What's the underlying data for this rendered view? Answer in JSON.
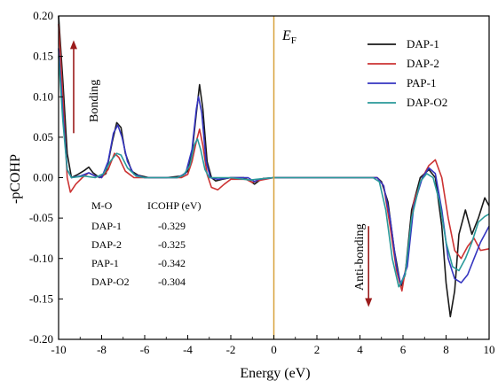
{
  "chart_data": {
    "type": "line",
    "xlabel": "Energy (eV)",
    "ylabel": "-pCOHP",
    "xlim": [
      -10,
      10
    ],
    "ylim": [
      -0.2,
      0.2
    ],
    "x_ticks": [
      -10,
      -8,
      -6,
      -4,
      -2,
      0,
      2,
      4,
      6,
      8,
      10
    ],
    "y_ticks": [
      -0.2,
      -0.15,
      -0.1,
      -0.05,
      0.0,
      0.05,
      0.1,
      0.15,
      0.2
    ],
    "fermi_level": {
      "x": 0,
      "label": "E",
      "subscript": "F",
      "color": "#d8a13a"
    },
    "legend": {
      "position": "top-right"
    },
    "series": [
      {
        "name": "DAP-1",
        "color": "#1a1a1a",
        "points": [
          [
            -10,
            0.2
          ],
          [
            -9.8,
            0.12
          ],
          [
            -9.6,
            0.03
          ],
          [
            -9.4,
            0.0
          ],
          [
            -9.1,
            0.004
          ],
          [
            -8.8,
            0.009
          ],
          [
            -8.6,
            0.013
          ],
          [
            -8.4,
            0.006
          ],
          [
            -8.1,
            0.0
          ],
          [
            -7.8,
            0.005
          ],
          [
            -7.5,
            0.045
          ],
          [
            -7.3,
            0.068
          ],
          [
            -7.1,
            0.062
          ],
          [
            -6.9,
            0.03
          ],
          [
            -6.6,
            0.008
          ],
          [
            -6.3,
            0.003
          ],
          [
            -5.8,
            0.0
          ],
          [
            -5.0,
            0.0
          ],
          [
            -4.3,
            0.002
          ],
          [
            -4.0,
            0.008
          ],
          [
            -3.8,
            0.03
          ],
          [
            -3.6,
            0.08
          ],
          [
            -3.45,
            0.115
          ],
          [
            -3.3,
            0.085
          ],
          [
            -3.1,
            0.02
          ],
          [
            -2.9,
            0.0
          ],
          [
            -2.7,
            -0.004
          ],
          [
            -2.4,
            -0.002
          ],
          [
            -2.0,
            0.0
          ],
          [
            -1.4,
            0.0
          ],
          [
            -1.1,
            -0.004
          ],
          [
            -0.9,
            -0.008
          ],
          [
            -0.7,
            -0.004
          ],
          [
            -0.5,
            -0.001
          ],
          [
            0,
            0.0
          ],
          [
            3.0,
            0.0
          ],
          [
            4.8,
            0.0
          ],
          [
            5.0,
            -0.005
          ],
          [
            5.3,
            -0.03
          ],
          [
            5.6,
            -0.09
          ],
          [
            5.9,
            -0.135
          ],
          [
            6.1,
            -0.12
          ],
          [
            6.4,
            -0.04
          ],
          [
            6.8,
            0.0
          ],
          [
            7.2,
            0.01
          ],
          [
            7.5,
            0.0
          ],
          [
            7.8,
            -0.06
          ],
          [
            8.0,
            -0.13
          ],
          [
            8.2,
            -0.172
          ],
          [
            8.4,
            -0.14
          ],
          [
            8.6,
            -0.07
          ],
          [
            8.9,
            -0.04
          ],
          [
            9.2,
            -0.07
          ],
          [
            9.5,
            -0.05
          ],
          [
            9.8,
            -0.025
          ],
          [
            10,
            -0.035
          ]
        ]
      },
      {
        "name": "DAP-2",
        "color": "#cc3333",
        "points": [
          [
            -10,
            0.19
          ],
          [
            -9.8,
            0.1
          ],
          [
            -9.6,
            0.0
          ],
          [
            -9.45,
            -0.018
          ],
          [
            -9.2,
            -0.008
          ],
          [
            -8.9,
            0.0
          ],
          [
            -8.6,
            0.006
          ],
          [
            -8.3,
            0.002
          ],
          [
            -8.0,
            0.0
          ],
          [
            -7.7,
            0.01
          ],
          [
            -7.4,
            0.03
          ],
          [
            -7.2,
            0.025
          ],
          [
            -6.9,
            0.008
          ],
          [
            -6.5,
            0.0
          ],
          [
            -5.5,
            0.0
          ],
          [
            -4.3,
            0.0
          ],
          [
            -4.0,
            0.004
          ],
          [
            -3.8,
            0.02
          ],
          [
            -3.6,
            0.045
          ],
          [
            -3.45,
            0.06
          ],
          [
            -3.3,
            0.04
          ],
          [
            -3.1,
            0.004
          ],
          [
            -2.9,
            -0.012
          ],
          [
            -2.6,
            -0.015
          ],
          [
            -2.3,
            -0.008
          ],
          [
            -2.0,
            -0.002
          ],
          [
            -1.3,
            -0.002
          ],
          [
            -1.0,
            -0.006
          ],
          [
            -0.8,
            -0.004
          ],
          [
            0,
            0.0
          ],
          [
            3.0,
            0.0
          ],
          [
            4.8,
            0.0
          ],
          [
            5.1,
            -0.01
          ],
          [
            5.4,
            -0.06
          ],
          [
            5.7,
            -0.115
          ],
          [
            5.95,
            -0.14
          ],
          [
            6.2,
            -0.1
          ],
          [
            6.5,
            -0.03
          ],
          [
            6.9,
            0.0
          ],
          [
            7.2,
            0.015
          ],
          [
            7.5,
            0.022
          ],
          [
            7.8,
            0.0
          ],
          [
            8.1,
            -0.05
          ],
          [
            8.4,
            -0.09
          ],
          [
            8.7,
            -0.1
          ],
          [
            9.0,
            -0.085
          ],
          [
            9.3,
            -0.075
          ],
          [
            9.6,
            -0.09
          ],
          [
            10,
            -0.088
          ]
        ]
      },
      {
        "name": "PAP-1",
        "color": "#3535c0",
        "points": [
          [
            -10,
            0.16
          ],
          [
            -9.8,
            0.08
          ],
          [
            -9.6,
            0.01
          ],
          [
            -9.4,
            0.0
          ],
          [
            -9.0,
            0.002
          ],
          [
            -8.6,
            0.006
          ],
          [
            -8.3,
            0.002
          ],
          [
            -8.0,
            0.0
          ],
          [
            -7.7,
            0.02
          ],
          [
            -7.45,
            0.055
          ],
          [
            -7.25,
            0.065
          ],
          [
            -7.05,
            0.05
          ],
          [
            -6.8,
            0.02
          ],
          [
            -6.5,
            0.004
          ],
          [
            -6.0,
            0.0
          ],
          [
            -4.5,
            0.0
          ],
          [
            -4.1,
            0.005
          ],
          [
            -3.8,
            0.035
          ],
          [
            -3.6,
            0.085
          ],
          [
            -3.5,
            0.1
          ],
          [
            -3.35,
            0.08
          ],
          [
            -3.15,
            0.02
          ],
          [
            -2.95,
            0.0
          ],
          [
            -2.6,
            -0.002
          ],
          [
            -2.0,
            0.0
          ],
          [
            -1.2,
            0.0
          ],
          [
            -0.9,
            -0.005
          ],
          [
            -0.7,
            -0.002
          ],
          [
            0,
            0.0
          ],
          [
            3.0,
            0.0
          ],
          [
            4.8,
            0.0
          ],
          [
            5.1,
            -0.01
          ],
          [
            5.4,
            -0.05
          ],
          [
            5.7,
            -0.11
          ],
          [
            5.9,
            -0.132
          ],
          [
            6.2,
            -0.11
          ],
          [
            6.5,
            -0.035
          ],
          [
            6.9,
            0.0
          ],
          [
            7.2,
            0.012
          ],
          [
            7.5,
            0.005
          ],
          [
            7.8,
            -0.04
          ],
          [
            8.1,
            -0.1
          ],
          [
            8.4,
            -0.125
          ],
          [
            8.7,
            -0.13
          ],
          [
            9.0,
            -0.12
          ],
          [
            9.3,
            -0.1
          ],
          [
            9.6,
            -0.08
          ],
          [
            10,
            -0.06
          ]
        ]
      },
      {
        "name": "DAP-O2",
        "color": "#2a9a9a",
        "points": [
          [
            -10,
            0.15
          ],
          [
            -9.8,
            0.07
          ],
          [
            -9.6,
            0.01
          ],
          [
            -9.4,
            0.0
          ],
          [
            -8.8,
            0.002
          ],
          [
            -8.3,
            0.0
          ],
          [
            -7.9,
            0.005
          ],
          [
            -7.6,
            0.02
          ],
          [
            -7.3,
            0.03
          ],
          [
            -7.1,
            0.028
          ],
          [
            -6.8,
            0.012
          ],
          [
            -6.4,
            0.002
          ],
          [
            -6.0,
            0.0
          ],
          [
            -4.5,
            0.0
          ],
          [
            -4.2,
            0.003
          ],
          [
            -3.9,
            0.015
          ],
          [
            -3.7,
            0.04
          ],
          [
            -3.55,
            0.048
          ],
          [
            -3.4,
            0.035
          ],
          [
            -3.2,
            0.01
          ],
          [
            -3.0,
            0.0
          ],
          [
            -2.0,
            0.0
          ],
          [
            -1.1,
            -0.003
          ],
          [
            -0.8,
            -0.002
          ],
          [
            0,
            0.0
          ],
          [
            3.0,
            0.0
          ],
          [
            4.6,
            0.0
          ],
          [
            4.9,
            -0.005
          ],
          [
            5.2,
            -0.04
          ],
          [
            5.5,
            -0.1
          ],
          [
            5.8,
            -0.135
          ],
          [
            6.1,
            -0.12
          ],
          [
            6.4,
            -0.05
          ],
          [
            6.8,
            -0.005
          ],
          [
            7.1,
            0.005
          ],
          [
            7.4,
            0.0
          ],
          [
            7.7,
            -0.03
          ],
          [
            8.0,
            -0.08
          ],
          [
            8.3,
            -0.11
          ],
          [
            8.6,
            -0.115
          ],
          [
            8.9,
            -0.1
          ],
          [
            9.2,
            -0.08
          ],
          [
            9.5,
            -0.055
          ],
          [
            9.8,
            -0.048
          ],
          [
            10,
            -0.045
          ]
        ]
      }
    ],
    "annotations": {
      "bonding_label": "Bonding",
      "antibonding_label": "Anti-bonding",
      "bonding_arrow": {
        "x": -9.3,
        "y_from": 0.055,
        "y_to": 0.17,
        "color": "#9b1c1c"
      },
      "antibonding_arrow": {
        "x": 4.4,
        "y_from": -0.06,
        "y_to": -0.16,
        "color": "#9b1c1c"
      },
      "icohp_table": {
        "header": [
          "M-O",
          "ICOHP (eV)"
        ],
        "rows": [
          [
            "DAP-1",
            "-0.329"
          ],
          [
            "DAP-2",
            "-0.325"
          ],
          [
            "PAP-1",
            "-0.342"
          ],
          [
            "DAP-O2",
            "-0.304"
          ]
        ]
      }
    }
  }
}
